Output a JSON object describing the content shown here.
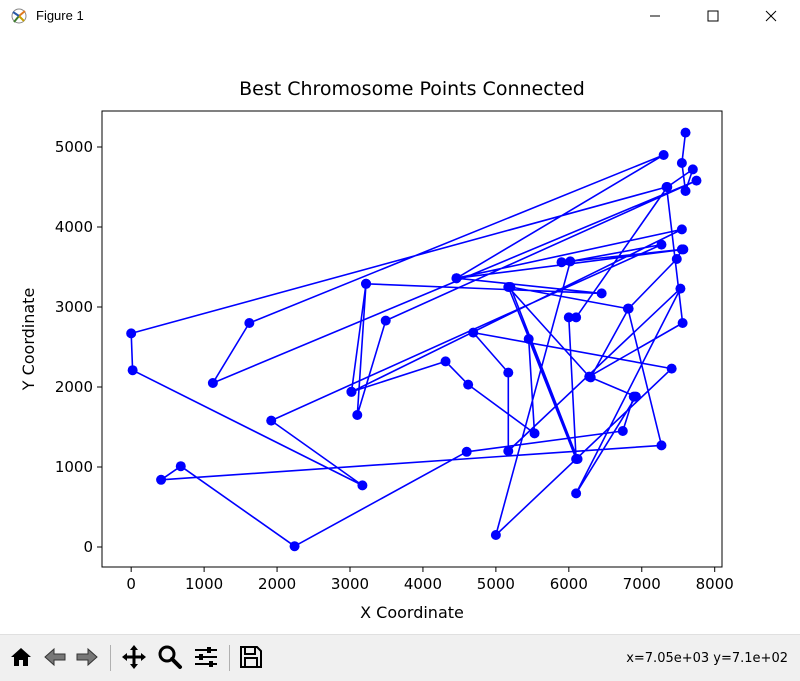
{
  "window": {
    "title": "Figure 1",
    "icons": {
      "app": "matplotlib-figure-icon",
      "minimize": "minimize-icon",
      "maximize": "maximize-icon",
      "close": "close-icon"
    }
  },
  "toolbar": {
    "buttons": [
      {
        "name": "home",
        "icon": "home-icon"
      },
      {
        "name": "back",
        "icon": "back-arrow-icon"
      },
      {
        "name": "forward",
        "icon": "forward-arrow-icon"
      },
      {
        "name": "pan",
        "icon": "move-icon"
      },
      {
        "name": "zoom",
        "icon": "magnifier-icon"
      },
      {
        "name": "configure-subplots",
        "icon": "sliders-icon"
      },
      {
        "name": "save",
        "icon": "floppy-disk-icon"
      }
    ],
    "coordinates": "x=7.05e+03 y=7.1e+02"
  },
  "chart_data": {
    "type": "line",
    "title": "Best Chromosome Points Connected",
    "xlabel": "X Coordinate",
    "ylabel": "Y Coordinate",
    "xlim": [
      -400,
      8100
    ],
    "ylim": [
      -250,
      5450
    ],
    "xticks": [
      0,
      1000,
      2000,
      3000,
      4000,
      5000,
      6000,
      7000,
      8000
    ],
    "yticks": [
      0,
      1000,
      2000,
      3000,
      4000,
      5000
    ],
    "grid": false,
    "series": [
      {
        "color": "#0000ff",
        "marker": "circle",
        "points": [
          [
            7600,
            5180
          ],
          [
            7550,
            4800
          ],
          [
            7600,
            4450
          ],
          [
            7700,
            4720
          ],
          [
            7350,
            4500
          ],
          [
            6100,
            2870
          ],
          [
            6000,
            2870
          ],
          [
            6100,
            1100
          ],
          [
            5450,
            2600
          ],
          [
            5530,
            1420
          ],
          [
            4620,
            2030
          ],
          [
            4310,
            2320
          ],
          [
            3020,
            1940
          ],
          [
            3220,
            3290
          ],
          [
            6450,
            3170
          ],
          [
            4460,
            3360
          ],
          [
            7300,
            4900
          ],
          [
            1620,
            2800
          ],
          [
            1120,
            2050
          ],
          [
            7750,
            4580
          ],
          [
            3490,
            2830
          ],
          [
            3100,
            1650
          ],
          [
            3220,
            3290
          ],
          [
            3020,
            1940
          ],
          [
            7550,
            3970
          ],
          [
            4460,
            3360
          ],
          [
            7570,
            3720
          ],
          [
            5900,
            3560
          ],
          [
            7550,
            3720
          ],
          [
            7480,
            3600
          ],
          [
            6820,
            2980
          ],
          [
            6300,
            2120
          ],
          [
            6920,
            1880
          ],
          [
            6100,
            670
          ],
          [
            7530,
            3230
          ],
          [
            5170,
            1200
          ],
          [
            5170,
            2180
          ],
          [
            4690,
            2680
          ],
          [
            7410,
            2230
          ],
          [
            5000,
            150
          ],
          [
            6020,
            3570
          ],
          [
            7270,
            3780
          ],
          [
            1920,
            1580
          ],
          [
            3170,
            770
          ],
          [
            20,
            2210
          ],
          [
            0,
            2670
          ],
          [
            7340,
            4500
          ],
          [
            7560,
            2800
          ],
          [
            6280,
            2130
          ],
          [
            5170,
            3250
          ],
          [
            6120,
            1100
          ],
          [
            5200,
            3250
          ],
          [
            6810,
            2980
          ],
          [
            7270,
            1270
          ],
          [
            410,
            840
          ],
          [
            680,
            1010
          ],
          [
            2240,
            10
          ],
          [
            4600,
            1190
          ],
          [
            6740,
            1450
          ],
          [
            6890,
            1880
          ]
        ]
      }
    ]
  }
}
